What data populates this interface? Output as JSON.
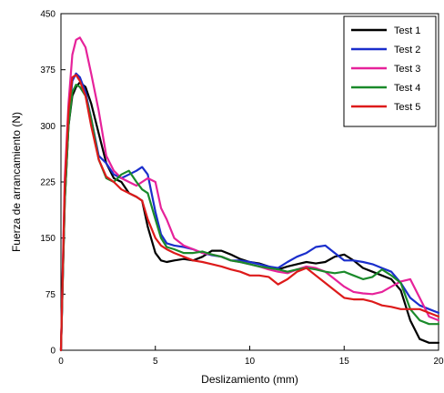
{
  "chart_data": {
    "type": "line",
    "title": "",
    "xlabel": "Deslizamiento (mm)",
    "ylabel": "Fuerza de arrancamiento (N)",
    "xlim": [
      0,
      20
    ],
    "ylim": [
      0,
      450
    ],
    "xticks": [
      "0",
      "5",
      "10",
      "15",
      "20"
    ],
    "yticks": [
      "0",
      "75",
      "150",
      "225",
      "300",
      "375",
      "450"
    ],
    "grid": false,
    "legend_position": "top-right",
    "series": [
      {
        "name": "Test 1",
        "color": "#000000",
        "x": [
          0,
          0.2,
          0.4,
          0.6,
          0.8,
          1.0,
          1.3,
          1.6,
          2.0,
          2.4,
          2.8,
          3.2,
          3.6,
          4.0,
          4.3,
          4.6,
          5.0,
          5.3,
          5.6,
          6.0,
          6.5,
          7.0,
          7.5,
          8.0,
          8.5,
          9.0,
          9.5,
          10,
          10.5,
          11,
          11.5,
          12,
          12.5,
          13,
          13.5,
          14,
          14.5,
          15,
          15.5,
          16,
          16.5,
          17,
          17.5,
          18,
          18.5,
          19,
          19.5,
          20
        ],
        "y": [
          0,
          200,
          300,
          340,
          352,
          358,
          352,
          330,
          290,
          250,
          230,
          225,
          210,
          205,
          200,
          165,
          130,
          120,
          118,
          120,
          122,
          120,
          125,
          133,
          133,
          128,
          122,
          118,
          116,
          112,
          108,
          112,
          115,
          118,
          116,
          118,
          125,
          128,
          120,
          110,
          105,
          100,
          95,
          80,
          40,
          15,
          10,
          10
        ]
      },
      {
        "name": "Test 2",
        "color": "#1a2ecc",
        "x": [
          0,
          0.2,
          0.4,
          0.6,
          0.8,
          1.0,
          1.3,
          1.6,
          2.0,
          2.4,
          2.8,
          3.2,
          3.6,
          4.0,
          4.3,
          4.6,
          5.0,
          5.3,
          5.6,
          6.0,
          6.5,
          7.0,
          7.5,
          8.0,
          8.5,
          9.0,
          9.5,
          10,
          10.5,
          11,
          11.5,
          12,
          12.5,
          13,
          13.5,
          14,
          14.5,
          15,
          15.5,
          16,
          16.5,
          17,
          17.5,
          18,
          18.5,
          19,
          19.5,
          20
        ],
        "y": [
          0,
          210,
          310,
          360,
          370,
          365,
          345,
          310,
          260,
          250,
          235,
          230,
          235,
          240,
          245,
          235,
          185,
          155,
          143,
          140,
          138,
          135,
          130,
          127,
          125,
          120,
          120,
          118,
          115,
          112,
          110,
          118,
          125,
          130,
          138,
          140,
          130,
          120,
          120,
          118,
          115,
          110,
          105,
          90,
          70,
          60,
          55,
          50
        ]
      },
      {
        "name": "Test 3",
        "color": "#e6229a",
        "x": [
          0,
          0.2,
          0.4,
          0.6,
          0.8,
          1.0,
          1.3,
          1.6,
          2.0,
          2.4,
          2.8,
          3.2,
          3.6,
          4.0,
          4.3,
          4.6,
          5.0,
          5.3,
          5.6,
          6.0,
          6.5,
          7.0,
          7.5,
          8.0,
          8.5,
          9.0,
          9.5,
          10,
          10.5,
          11,
          11.5,
          12,
          12.5,
          13,
          13.5,
          14,
          14.5,
          15,
          15.5,
          16,
          16.5,
          17,
          17.5,
          18,
          18.5,
          19,
          19.5,
          20
        ],
        "y": [
          0,
          230,
          330,
          395,
          415,
          418,
          405,
          370,
          320,
          260,
          240,
          230,
          225,
          220,
          225,
          230,
          225,
          190,
          175,
          150,
          140,
          135,
          130,
          128,
          125,
          120,
          118,
          115,
          112,
          108,
          105,
          103,
          108,
          112,
          110,
          105,
          95,
          85,
          78,
          76,
          75,
          78,
          85,
          92,
          95,
          70,
          45,
          40
        ]
      },
      {
        "name": "Test 4",
        "color": "#1a8a2a",
        "x": [
          0,
          0.2,
          0.4,
          0.6,
          0.8,
          1.0,
          1.3,
          1.6,
          2.0,
          2.4,
          2.8,
          3.2,
          3.6,
          4.0,
          4.3,
          4.6,
          5.0,
          5.3,
          5.6,
          6.0,
          6.5,
          7.0,
          7.5,
          8.0,
          8.5,
          9.0,
          9.5,
          10,
          10.5,
          11,
          11.5,
          12,
          12.5,
          13,
          13.5,
          14,
          14.5,
          15,
          15.5,
          16,
          16.5,
          17,
          17.5,
          18,
          18.5,
          19,
          19.5,
          20
        ],
        "y": [
          0,
          200,
          300,
          345,
          355,
          352,
          340,
          310,
          255,
          230,
          225,
          235,
          240,
          225,
          215,
          210,
          175,
          150,
          138,
          135,
          130,
          130,
          132,
          128,
          125,
          120,
          118,
          115,
          112,
          110,
          108,
          105,
          108,
          110,
          108,
          105,
          103,
          105,
          100,
          95,
          98,
          108,
          100,
          90,
          55,
          40,
          35,
          35
        ]
      },
      {
        "name": "Test 5",
        "color": "#dd1a1a",
        "x": [
          0,
          0.2,
          0.4,
          0.6,
          0.8,
          1.0,
          1.3,
          1.6,
          2.0,
          2.4,
          2.8,
          3.2,
          3.6,
          4.0,
          4.3,
          4.6,
          5.0,
          5.3,
          5.6,
          6.0,
          6.5,
          7.0,
          7.5,
          8.0,
          8.5,
          9.0,
          9.5,
          10,
          10.5,
          11,
          11.5,
          12,
          12.5,
          13,
          13.5,
          14,
          14.5,
          15,
          15.5,
          16,
          16.5,
          17,
          17.5,
          18,
          18.5,
          19,
          19.5,
          20
        ],
        "y": [
          0,
          220,
          320,
          365,
          368,
          360,
          340,
          300,
          255,
          232,
          225,
          215,
          210,
          205,
          200,
          175,
          150,
          140,
          135,
          130,
          125,
          120,
          118,
          115,
          112,
          108,
          105,
          100,
          100,
          98,
          88,
          95,
          105,
          110,
          100,
          90,
          80,
          70,
          68,
          68,
          65,
          60,
          58,
          55,
          55,
          55,
          50,
          45
        ]
      }
    ]
  }
}
